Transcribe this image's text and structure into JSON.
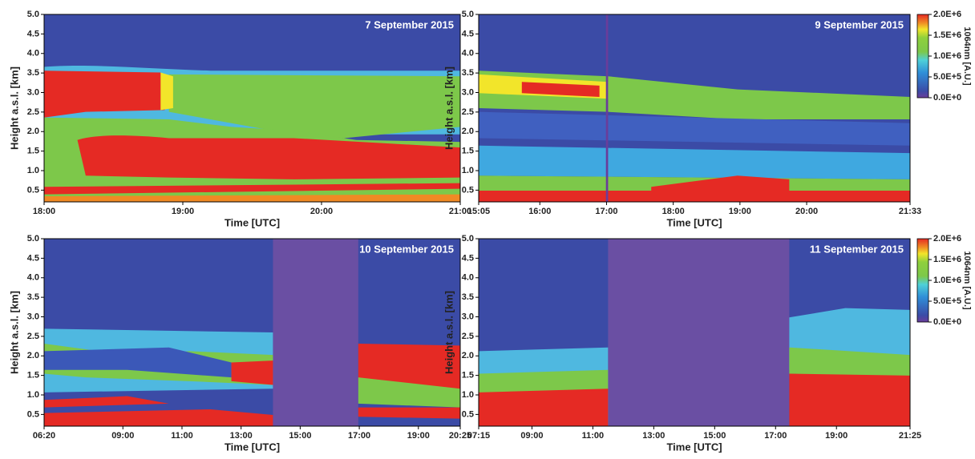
{
  "chart_data": [
    {
      "type": "heatmap",
      "title": "7 September 2015",
      "x_label": "Time [UTC]",
      "y_label": "Height a.s.l. [km]",
      "xlim": [
        "18:00",
        "21:00"
      ],
      "xticks": [
        "18:00",
        "19:00",
        "20:00",
        "21:00"
      ],
      "ylim": [
        0.2,
        5.0
      ],
      "yticks": [
        0.5,
        {
          "value": 1,
          "label": "1.0"
        },
        1.5,
        {
          "value": 2,
          "label": "2.0"
        },
        2.5,
        {
          "value": 3,
          "label": "3.0"
        },
        3.5,
        {
          "value": 4,
          "label": "4.0"
        },
        4.5,
        {
          "value": 5,
          "label": "5.0"
        }
      ]
    },
    {
      "type": "heatmap",
      "title": "9 September 2015",
      "x_label": "Time [UTC]",
      "y_label": "Height a.s.l. [km]",
      "xlim": [
        "15:05",
        "21:33"
      ],
      "xticks": [
        "15:05",
        "16:00",
        "17:00",
        "18:00",
        "19:00",
        "20:00",
        "21:33"
      ],
      "ylim": [
        0.2,
        5.0
      ],
      "yticks": [
        0.5,
        {
          "value": 1,
          "label": "1.0"
        },
        1.5,
        {
          "value": 2,
          "label": "2.0"
        },
        2.5,
        {
          "value": 3,
          "label": "3.0"
        },
        3.5,
        {
          "value": 4,
          "label": "4.0"
        },
        4.5,
        {
          "value": 5,
          "label": "5.0"
        }
      ],
      "colorbar": {
        "label": "1064nm [A.U.]",
        "clim": [
          0,
          2000000
        ],
        "ticks": [
          {
            "value": 0,
            "label": "0.0E+0"
          },
          {
            "value": 500000,
            "label": "5.0E+5"
          },
          {
            "value": 1000000,
            "label": "1.0E+6"
          },
          {
            "value": 1500000,
            "label": "1.5E+6"
          },
          {
            "value": 2000000,
            "label": "2.0E+6"
          }
        ]
      }
    },
    {
      "type": "heatmap",
      "title": "10 September 2015",
      "x_label": "Time [UTC]",
      "y_label": "Height a.s.l. [km]",
      "xlim": [
        "06:20",
        "20:25"
      ],
      "xticks": [
        "06:20",
        "09:00",
        "11:00",
        "13:00",
        "15:00",
        "17:00",
        "19:00",
        "20:25"
      ],
      "ylim": [
        0.2,
        5.0
      ],
      "yticks": [
        0.5,
        {
          "value": 1,
          "label": "1.0"
        },
        1.5,
        {
          "value": 2,
          "label": "2.0"
        },
        2.5,
        {
          "value": 3,
          "label": "3.0"
        },
        3.5,
        {
          "value": 4,
          "label": "4.0"
        },
        4.5,
        {
          "value": 5,
          "label": "5.0"
        }
      ]
    },
    {
      "type": "heatmap",
      "title": "11 September 2015",
      "x_label": "Time [UTC]",
      "y_label": "Height a.s.l. [km]",
      "xlim": [
        "07:15",
        "21:25"
      ],
      "xticks": [
        "07:15",
        "09:00",
        "11:00",
        "13:00",
        "15:00",
        "17:00",
        "19:00",
        "21:25"
      ],
      "ylim": [
        0.2,
        5.0
      ],
      "yticks": [
        0.5,
        {
          "value": 1,
          "label": "1.0"
        },
        1.5,
        {
          "value": 2,
          "label": "2.0"
        },
        2.5,
        {
          "value": 3,
          "label": "3.0"
        },
        3.5,
        {
          "value": 4,
          "label": "4.0"
        },
        4.5,
        {
          "value": 5,
          "label": "5.0"
        }
      ],
      "colorbar": {
        "label": "1064nm [A.U.]",
        "clim": [
          0,
          2000000
        ],
        "ticks": [
          {
            "value": 0,
            "label": "0.0E+0"
          },
          {
            "value": 500000,
            "label": "5.0E+5"
          },
          {
            "value": 1000000,
            "label": "1.0E+6"
          },
          {
            "value": 1500000,
            "label": "1.5E+6"
          },
          {
            "value": 2000000,
            "label": "2.0E+6"
          }
        ]
      }
    }
  ]
}
